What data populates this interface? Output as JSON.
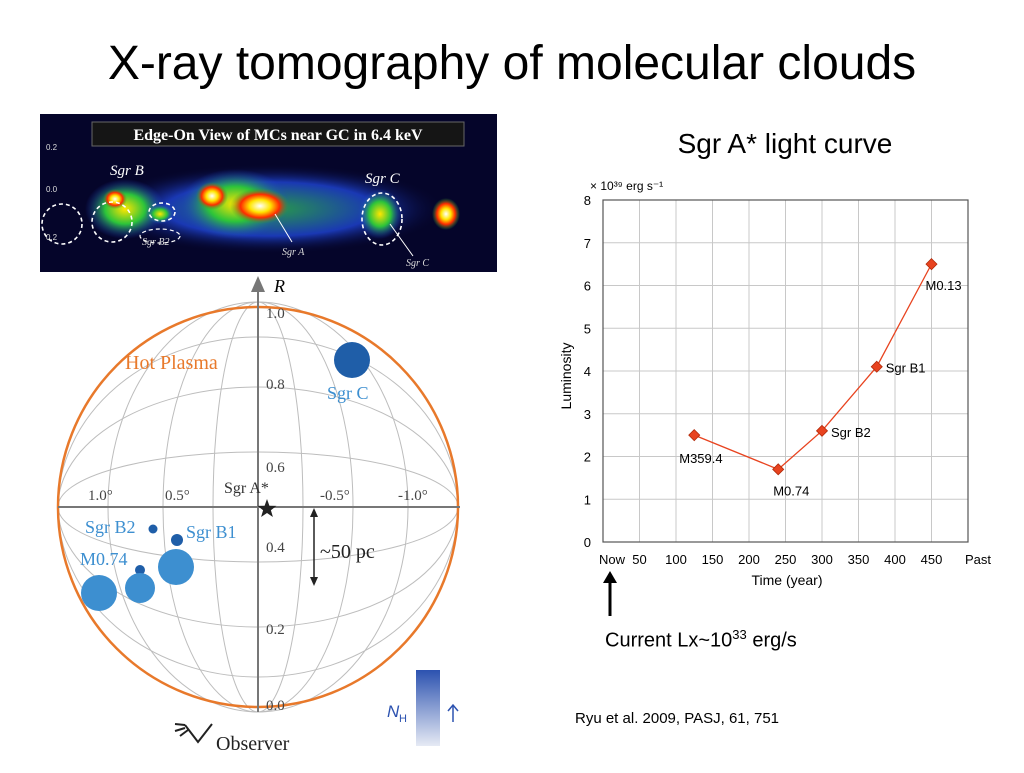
{
  "slide": {
    "title": "X-ray tomography of molecular clouds",
    "citation": "Ryu et al. 2009, PASJ, 61, 751",
    "current_lx": {
      "prefix": "Current Lx~10",
      "exponent": "33",
      "suffix": " erg/s"
    }
  },
  "xray_image": {
    "title": "Edge-On View of MCs near GC in 6.4 keV",
    "labels": [
      "Sgr B",
      "Sgr C",
      "Sgr B2",
      "Sgr A",
      "Sgr C"
    ],
    "yticks": [
      "0.2",
      "0.0",
      "0.2"
    ]
  },
  "sphere_diagram": {
    "axis_label": "R",
    "center_label": "Sgr A*",
    "plasma_label": "Hot Plasma",
    "scale_label": "~50 pc",
    "observer_label": "Observer",
    "nh_label": "N",
    "nh_sub": "H",
    "r_ticks": [
      "1.0",
      "0.8",
      "0.6",
      "0.4",
      "0.2",
      "0.0"
    ],
    "l_ticks": [
      "1.0°",
      "0.5°",
      "-0.5°",
      "-1.0°"
    ],
    "cloud_labels": [
      "Sgr C",
      "Sgr B2",
      "Sgr B1",
      "M0.74"
    ],
    "colors": {
      "plasma": "#e8792b",
      "cloud": "#3d8fd0",
      "cloud_dark": "#1f5ea8",
      "nh_bar": "#2c52b0"
    }
  },
  "chart_data": {
    "type": "line",
    "title": "Sgr A* light curve",
    "xlabel": "Time (year)",
    "ylabel": "Luminosity",
    "yunit": "× 10³⁹ erg s⁻¹",
    "xlim": [
      0,
      500
    ],
    "ylim": [
      0,
      8
    ],
    "xticks": [
      50,
      100,
      150,
      200,
      250,
      300,
      350,
      400,
      450
    ],
    "yticks": [
      0,
      1,
      2,
      3,
      4,
      5,
      6,
      7,
      8
    ],
    "x_start_label": "Now",
    "x_end_label": "Past",
    "grid": true,
    "series": [
      {
        "points": [
          {
            "x": 125,
            "y": 2.5,
            "label": "M359.4"
          },
          {
            "x": 240,
            "y": 1.7,
            "label": "M0.74"
          },
          {
            "x": 300,
            "y": 2.6,
            "label": "Sgr B2"
          },
          {
            "x": 375,
            "y": 4.1,
            "label": "Sgr B1"
          },
          {
            "x": 450,
            "y": 6.5,
            "label": "M0.13"
          }
        ],
        "color": "#e8431f"
      }
    ]
  }
}
